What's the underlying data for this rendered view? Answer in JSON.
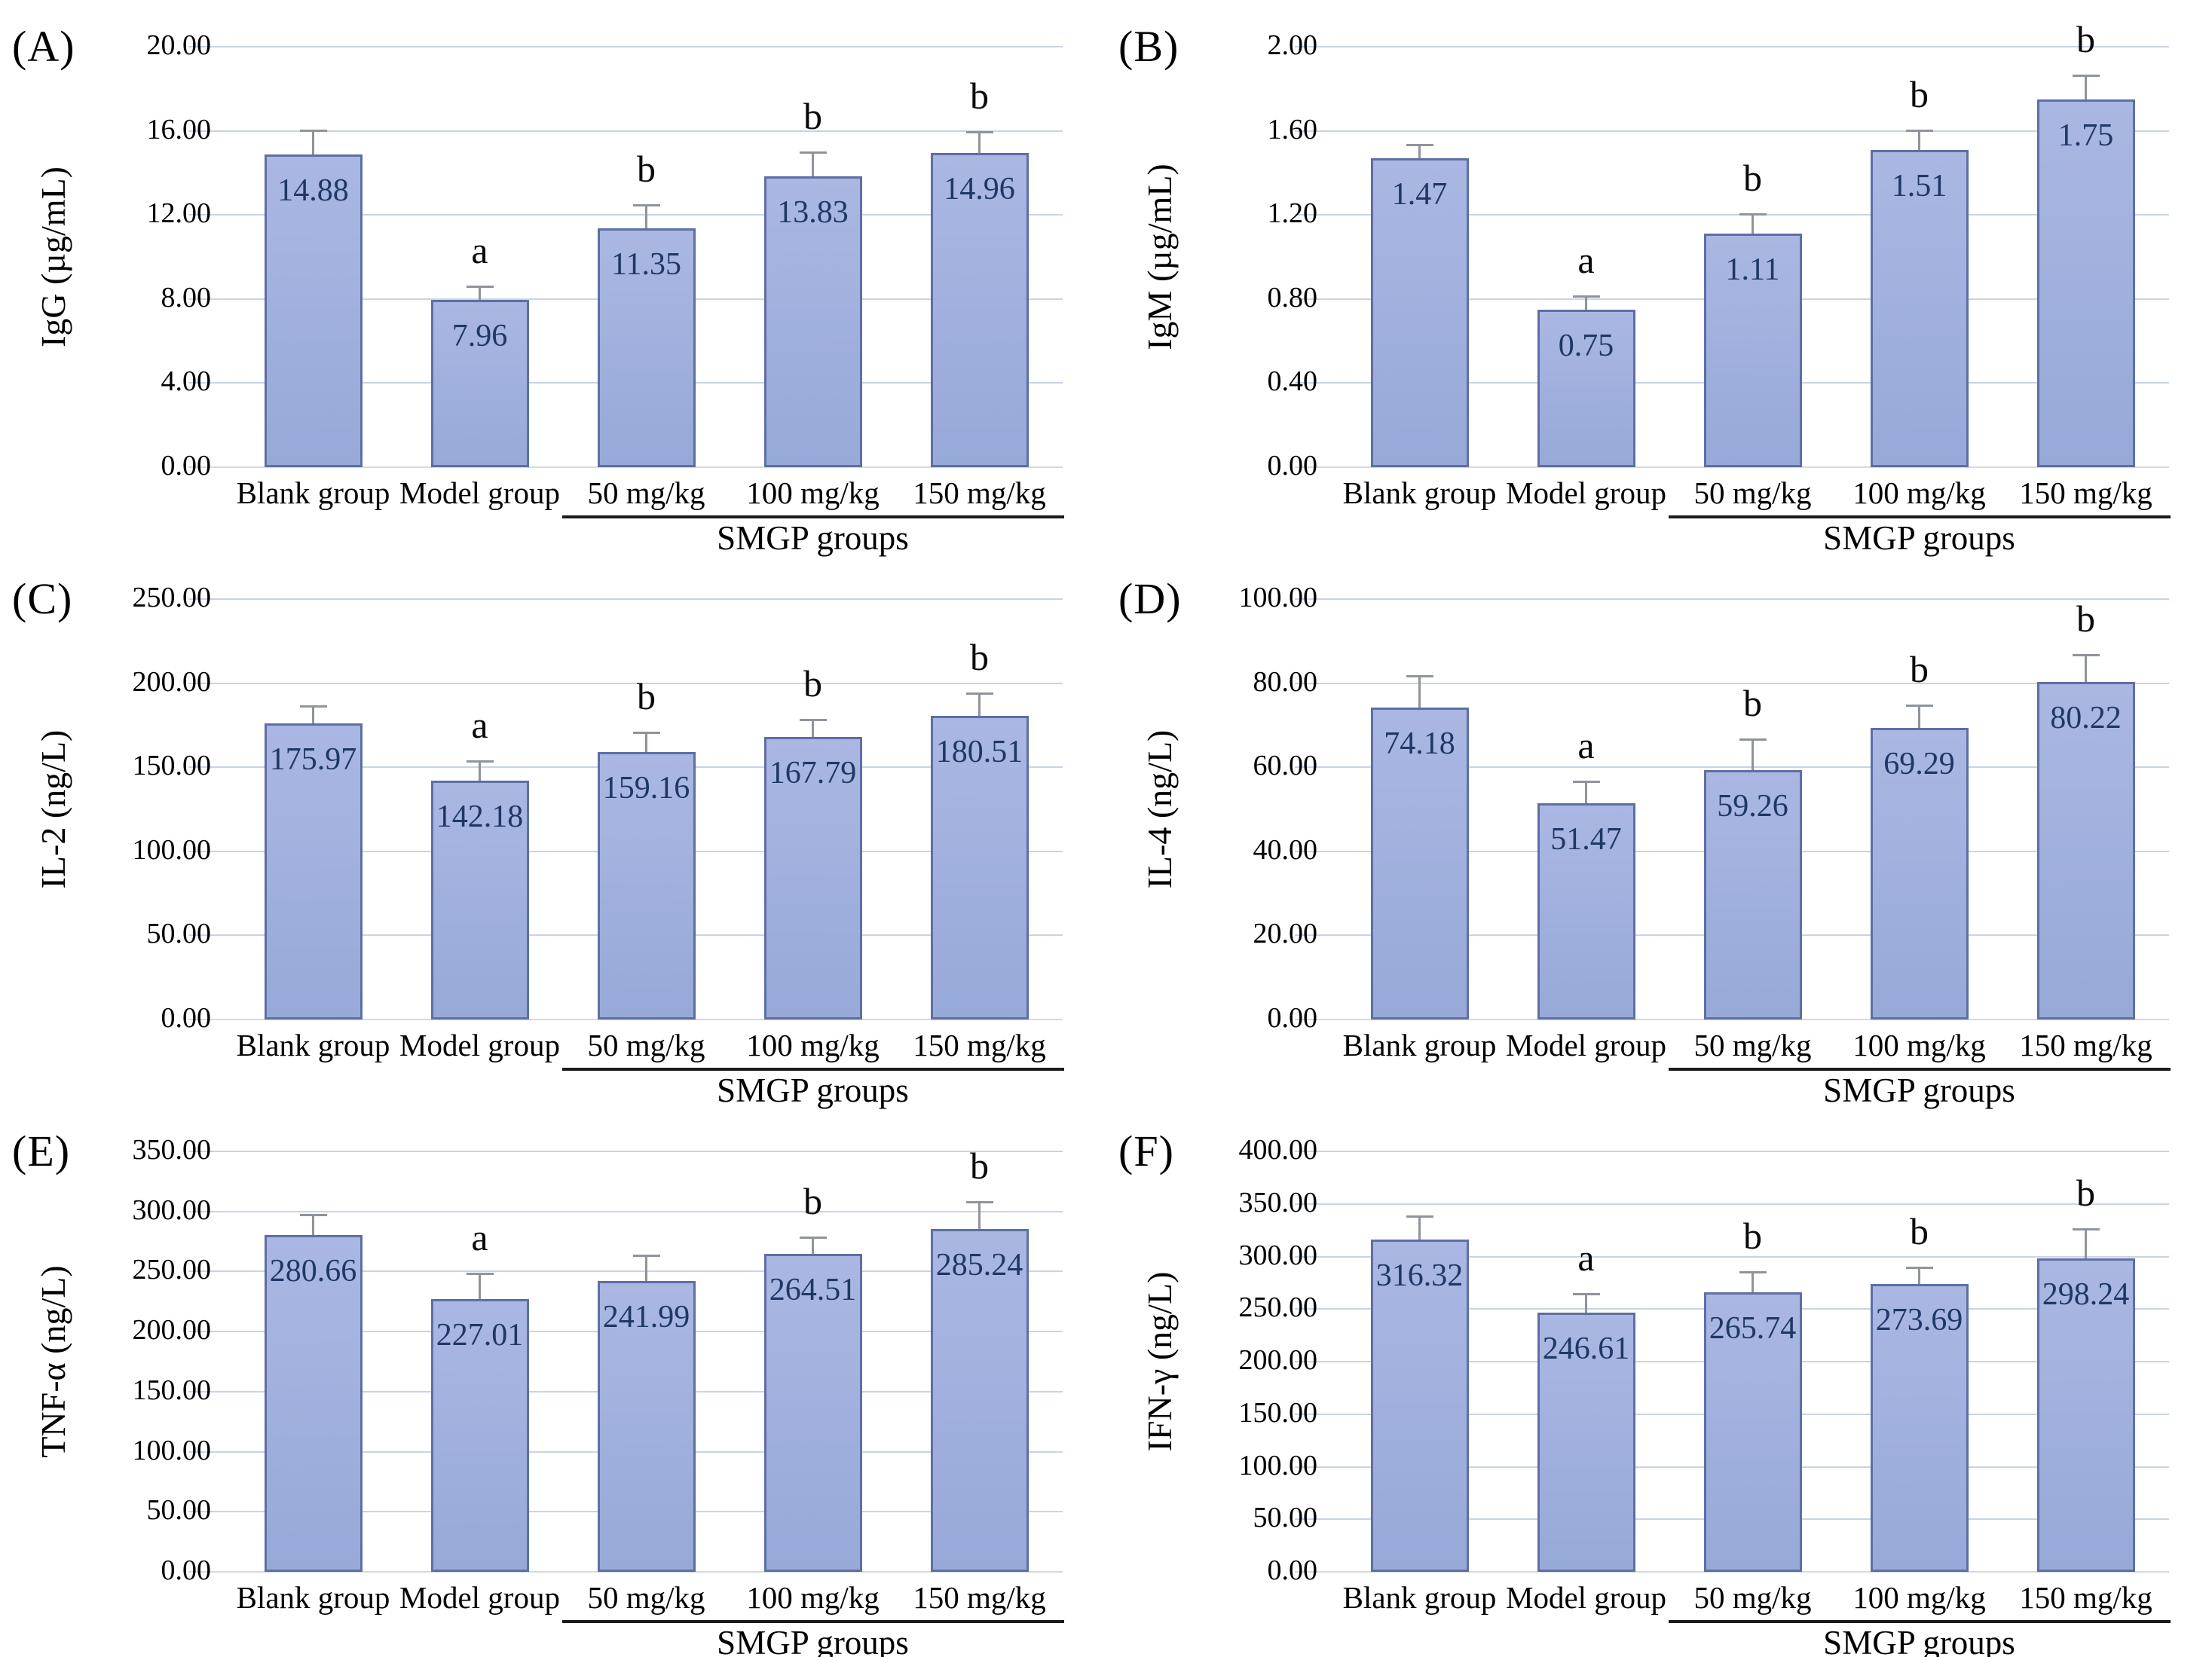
{
  "style": {
    "bar_fill_top": "#aab7e3",
    "bar_fill_bottom": "#97a9d8",
    "bar_border": "#5d6fa3",
    "grid_color": "#c9d4e3",
    "baseline_color": "#d6dadf",
    "error_color": "#8f949c",
    "value_color": "#1e3866",
    "background": "#ffffff"
  },
  "chart_data": [
    {
      "type": "bar",
      "panel": "(A)",
      "ylabel": "IgG (µg/mL)",
      "categories": [
        "Blank group",
        "Model group",
        "50 mg/kg",
        "100 mg/kg",
        "150 mg/kg"
      ],
      "values": [
        14.88,
        7.96,
        11.35,
        13.83,
        14.96
      ],
      "value_labels": [
        "14.88",
        "7.96",
        "11.35",
        "13.83",
        "14.96"
      ],
      "errors": [
        1.1,
        0.6,
        1.1,
        1.1,
        0.95
      ],
      "sig_letters": [
        "",
        "a",
        "b",
        "b",
        "b"
      ],
      "ylim": [
        0,
        20
      ],
      "ytick_labels": [
        "20.00",
        "16.00",
        "12.00",
        "8.00",
        "4.00",
        "0.00"
      ],
      "grid": true,
      "x_group_label": "SMGP groups",
      "x_group_underline_span": [
        "50 mg/kg",
        "150 mg/kg"
      ]
    },
    {
      "type": "bar",
      "panel": "(B)",
      "ylabel": "IgM (µg/mL)",
      "categories": [
        "Blank group",
        "Model group",
        "50 mg/kg",
        "100 mg/kg",
        "150 mg/kg"
      ],
      "values": [
        1.47,
        0.75,
        1.11,
        1.51,
        1.75
      ],
      "value_labels": [
        "1.47",
        "0.75",
        "1.11",
        "1.51",
        "1.75"
      ],
      "errors": [
        0.06,
        0.06,
        0.09,
        0.09,
        0.11
      ],
      "sig_letters": [
        "",
        "a",
        "b",
        "b",
        "b"
      ],
      "ylim": [
        0,
        2
      ],
      "ytick_labels": [
        "2.00",
        "1.60",
        "1.20",
        "0.80",
        "0.40",
        "0.00"
      ],
      "grid": true,
      "x_group_label": "SMGP groups",
      "x_group_underline_span": [
        "50 mg/kg",
        "150 mg/kg"
      ]
    },
    {
      "type": "bar",
      "panel": "(C)",
      "ylabel": "IL-2  (ng/L)",
      "categories": [
        "Blank group",
        "Model group",
        "50 mg/kg",
        "100 mg/kg",
        "150 mg/kg"
      ],
      "values": [
        175.97,
        142.18,
        159.16,
        167.79,
        180.51
      ],
      "value_labels": [
        "175.97",
        "142.18",
        "159.16",
        "167.79",
        "180.51"
      ],
      "errors": [
        10,
        11,
        11,
        10,
        13
      ],
      "sig_letters": [
        "",
        "a",
        "b",
        "b",
        "b"
      ],
      "ylim": [
        0,
        250
      ],
      "ytick_labels": [
        "250.00",
        "200.00",
        "150.00",
        "100.00",
        "50.00",
        "0.00"
      ],
      "grid": true,
      "x_group_label": "SMGP groups",
      "x_group_underline_span": [
        "50 mg/kg",
        "150 mg/kg"
      ]
    },
    {
      "type": "bar",
      "panel": "(D)",
      "ylabel": "IL-4 (ng/L)",
      "categories": [
        "Blank group",
        "Model group",
        "50 mg/kg",
        "100 mg/kg",
        "150 mg/kg"
      ],
      "values": [
        74.18,
        51.47,
        59.26,
        69.29,
        80.22
      ],
      "value_labels": [
        "74.18",
        "51.47",
        "59.26",
        "69.29",
        "80.22"
      ],
      "errors": [
        7.3,
        5.0,
        7.2,
        5.2,
        6.3
      ],
      "sig_letters": [
        "",
        "a",
        "b",
        "b",
        "b"
      ],
      "ylim": [
        0,
        100
      ],
      "ytick_labels": [
        "100.00",
        "80.00",
        "60.00",
        "40.00",
        "20.00",
        "0.00"
      ],
      "grid": true,
      "x_group_label": "SMGP groups",
      "x_group_underline_span": [
        "50 mg/kg",
        "150 mg/kg"
      ]
    },
    {
      "type": "bar",
      "panel": "(E)",
      "ylabel": "TNF-α (ng/L)",
      "categories": [
        "Blank group",
        "Model group",
        "50 mg/kg",
        "100 mg/kg",
        "150 mg/kg"
      ],
      "values": [
        280.66,
        227.01,
        241.99,
        264.51,
        285.24
      ],
      "value_labels": [
        "280.66",
        "227.01",
        "241.99",
        "264.51",
        "285.24"
      ],
      "errors": [
        16,
        21,
        21,
        13.5,
        22
      ],
      "sig_letters": [
        "",
        "a",
        "",
        "b",
        "b"
      ],
      "ylim": [
        0,
        350
      ],
      "ytick_labels": [
        "350.00",
        "300.00",
        "250.00",
        "200.00",
        "150.00",
        "100.00",
        "50.00",
        "0.00"
      ],
      "grid": true,
      "x_group_label": "SMGP groups",
      "x_group_underline_span": [
        "50 mg/kg",
        "150 mg/kg"
      ]
    },
    {
      "type": "bar",
      "panel": "(F)",
      "ylabel": "IFN-γ (ng/L)",
      "categories": [
        "Blank group",
        "Model group",
        "50 mg/kg",
        "100 mg/kg",
        "150 mg/kg"
      ],
      "values": [
        316.32,
        246.61,
        265.74,
        273.69,
        298.24
      ],
      "value_labels": [
        "316.32",
        "246.61",
        "265.74",
        "273.69",
        "298.24"
      ],
      "errors": [
        21,
        17,
        19,
        15,
        27
      ],
      "sig_letters": [
        "",
        "a",
        "b",
        "b",
        "b"
      ],
      "ylim": [
        0,
        400
      ],
      "ytick_labels": [
        "400.00",
        "350.00",
        "300.00",
        "250.00",
        "200.00",
        "150.00",
        "100.00",
        "50.00",
        "0.00"
      ],
      "grid": true,
      "x_group_label": "SMGP groups",
      "x_group_underline_span": [
        "50 mg/kg",
        "150 mg/kg"
      ]
    }
  ]
}
